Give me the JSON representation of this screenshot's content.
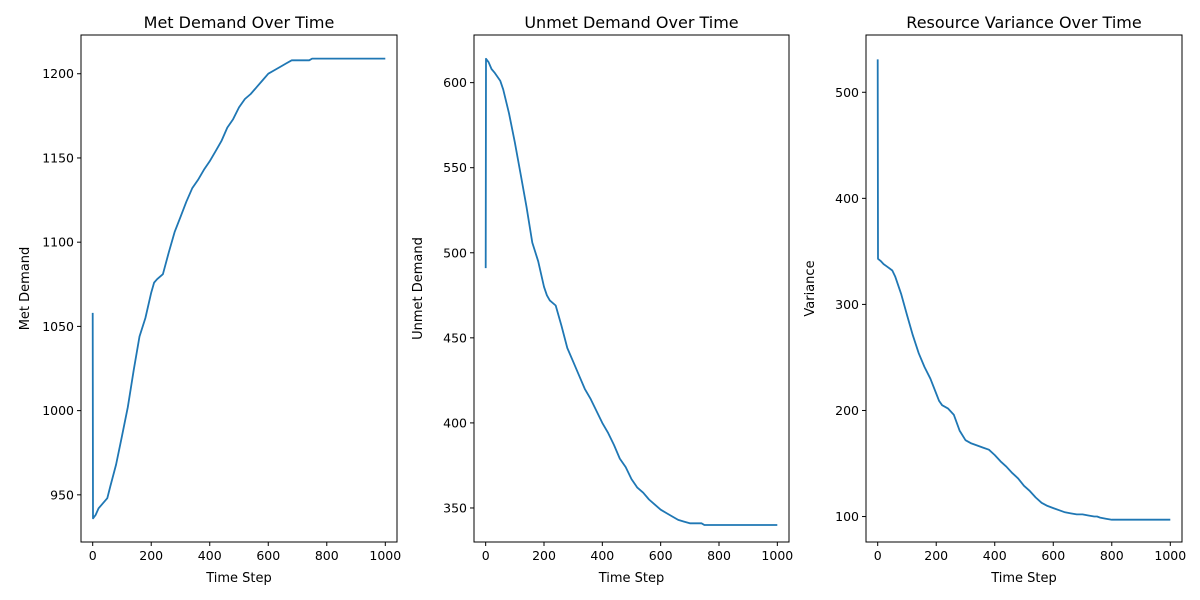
{
  "chart_data": [
    {
      "type": "line",
      "title": "Met Demand Over Time",
      "xlabel": "Time Step",
      "ylabel": "Met Demand",
      "xlim": [
        -40,
        1040
      ],
      "ylim": [
        922,
        1223
      ],
      "xticks": [
        0,
        200,
        400,
        600,
        800,
        1000
      ],
      "yticks": [
        950,
        1000,
        1050,
        1100,
        1150,
        1200
      ],
      "series": [
        {
          "color": "#1f77b4",
          "x": [
            0,
            1,
            10,
            20,
            30,
            50,
            60,
            80,
            100,
            120,
            140,
            160,
            180,
            200,
            210,
            220,
            240,
            260,
            280,
            300,
            320,
            340,
            360,
            380,
            400,
            420,
            440,
            460,
            480,
            500,
            520,
            540,
            560,
            580,
            600,
            620,
            640,
            660,
            680,
            700,
            720,
            740,
            750,
            760,
            780,
            800,
            850,
            900,
            950,
            1000
          ],
          "y": [
            1058,
            936,
            938,
            942,
            944,
            948,
            955,
            968,
            985,
            1002,
            1024,
            1044,
            1055,
            1070,
            1076,
            1078,
            1081,
            1094,
            1106,
            1115,
            1124,
            1132,
            1137,
            1143,
            1148,
            1154,
            1160,
            1168,
            1173,
            1180,
            1185,
            1188,
            1192,
            1196,
            1200,
            1202,
            1204,
            1206,
            1208,
            1208,
            1208,
            1208,
            1209,
            1209,
            1209,
            1209,
            1209,
            1209,
            1209,
            1209
          ]
        }
      ]
    },
    {
      "type": "line",
      "title": "Unmet Demand Over Time",
      "xlabel": "Time Step",
      "ylabel": "Unmet Demand",
      "xlim": [
        -40,
        1040
      ],
      "ylim": [
        330,
        628
      ],
      "xticks": [
        0,
        200,
        400,
        600,
        800,
        1000
      ],
      "yticks": [
        350,
        400,
        450,
        500,
        550,
        600
      ],
      "series": [
        {
          "color": "#1f77b4",
          "x": [
            0,
            1,
            10,
            20,
            30,
            50,
            60,
            80,
            100,
            120,
            140,
            160,
            180,
            200,
            210,
            220,
            240,
            260,
            280,
            300,
            320,
            340,
            360,
            380,
            400,
            420,
            440,
            460,
            480,
            500,
            520,
            540,
            560,
            580,
            600,
            620,
            640,
            660,
            680,
            700,
            720,
            740,
            750,
            760,
            780,
            800,
            850,
            900,
            950,
            1000
          ],
          "y": [
            491,
            614,
            612,
            608,
            606,
            601,
            596,
            582,
            565,
            546,
            527,
            506,
            495,
            480,
            475,
            472,
            469,
            457,
            444,
            436,
            428,
            420,
            414,
            407,
            400,
            394,
            387,
            379,
            374,
            367,
            362,
            359,
            355,
            352,
            349,
            347,
            345,
            343,
            342,
            341,
            341,
            341,
            340,
            340,
            340,
            340,
            340,
            340,
            340,
            340
          ]
        }
      ]
    },
    {
      "type": "line",
      "title": "Resource Variance Over Time",
      "xlabel": "Time Step",
      "ylabel": "Variance",
      "xlim": [
        -40,
        1040
      ],
      "ylim": [
        76,
        554
      ],
      "xticks": [
        0,
        200,
        400,
        600,
        800,
        1000
      ],
      "yticks": [
        100,
        200,
        300,
        400,
        500
      ],
      "series": [
        {
          "color": "#1f77b4",
          "x": [
            0,
            1,
            10,
            20,
            30,
            50,
            60,
            80,
            100,
            120,
            140,
            160,
            180,
            200,
            210,
            220,
            240,
            260,
            280,
            300,
            320,
            340,
            360,
            380,
            400,
            420,
            440,
            460,
            480,
            500,
            520,
            540,
            560,
            580,
            600,
            620,
            640,
            660,
            680,
            700,
            720,
            740,
            750,
            760,
            780,
            800,
            850,
            900,
            950,
            1000
          ],
          "y": [
            531,
            343,
            341,
            338,
            336,
            332,
            326,
            310,
            290,
            271,
            254,
            241,
            230,
            216,
            209,
            205,
            202,
            196,
            181,
            172,
            169,
            167,
            165,
            163,
            158,
            152,
            147,
            141,
            136,
            129,
            124,
            118,
            113,
            110,
            108,
            106,
            104,
            103,
            102,
            102,
            101,
            100,
            100,
            99,
            98,
            97,
            97,
            97,
            97,
            97
          ]
        }
      ]
    }
  ]
}
